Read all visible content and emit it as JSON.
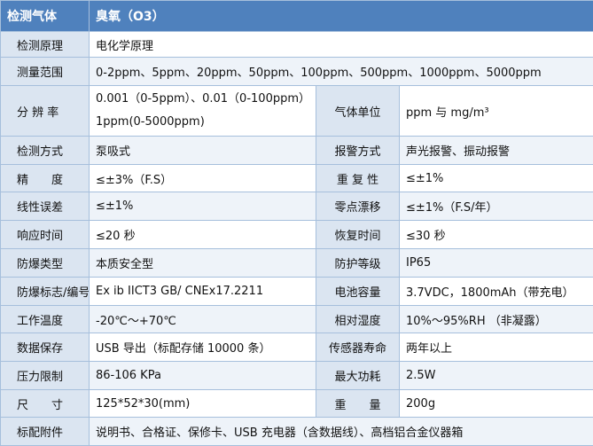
{
  "header": [
    "检测气体",
    "臭氧（O3）"
  ],
  "rows": [
    [
      "检测原理",
      "电化学原理"
    ],
    [
      "测量范围",
      "0-2ppm、5ppm、20ppm、50ppm、100ppm、500ppm、1000ppm、5000ppm"
    ],
    [
      "分 辨 率",
      {
        "lines": [
          "0.001（0-5ppm）、0.01（0-100ppm）",
          "1ppm(0-5000ppm)"
        ]
      },
      "气体单位",
      "ppm 与 mg/m³"
    ],
    [
      "检测方式",
      "泵吸式",
      "报警方式",
      "声光报警、振动报警"
    ],
    [
      "精　　度",
      "≤±3%（F.S）",
      "重 复 性",
      "≤±1%"
    ],
    [
      "线性误差",
      "≤±1%",
      "零点漂移",
      "≤±1%（F.S/年）"
    ],
    [
      "响应时间",
      "≤20 秒",
      "恢复时间",
      "≤30 秒"
    ],
    [
      "防爆类型",
      "本质安全型",
      "防护等级",
      "IP65"
    ],
    [
      "防爆标志/编号",
      "Ex ib IICT3 GB/ CNEx17.2211",
      "电池容量",
      "3.7VDC，1800mAh（带充电）"
    ],
    [
      "工作温度",
      "-20℃～+70℃",
      "相对湿度",
      "10%～95%RH （非凝露）"
    ],
    [
      "数据保存",
      "USB 导出（标配存储 10000 条）",
      "传感器寿命",
      "两年以上"
    ],
    [
      "压力限制",
      "86-106 KPa",
      "最大功耗",
      "2.5W"
    ],
    [
      "尺　　寸",
      "125*52*30(mm)",
      "重　　量",
      "200g"
    ],
    [
      "标配附件",
      "说明书、合格证、保修卡、USB 充电器（含数据线）、高档铝合金仪器箱"
    ]
  ]
}
